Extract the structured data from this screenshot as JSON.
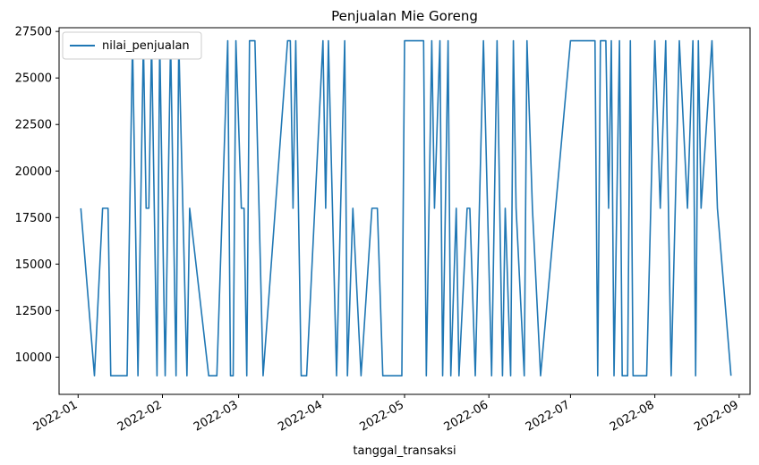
{
  "chart_data": {
    "type": "line",
    "title": "Penjualan Mie Goreng",
    "xlabel": "tanggal_transaksi",
    "ylabel": "",
    "xlim": [
      "2021-12-25",
      "2022-09-05"
    ],
    "ylim": [
      8000,
      27700
    ],
    "x_ticks": [
      "2022-01-01",
      "2022-02-01",
      "2022-03-01",
      "2022-04-01",
      "2022-05-01",
      "2022-06-01",
      "2022-07-01",
      "2022-08-01",
      "2022-09-01"
    ],
    "x_tick_labels": [
      "2022-01",
      "2022-02",
      "2022-03",
      "2022-04",
      "2022-05",
      "2022-06",
      "2022-07",
      "2022-08",
      "2022-09"
    ],
    "y_ticks": [
      10000,
      12500,
      15000,
      17500,
      20000,
      22500,
      25000,
      27500
    ],
    "y_tick_labels": [
      "10000",
      "12500",
      "15000",
      "17500",
      "20000",
      "22500",
      "25000",
      "27500"
    ],
    "legend": {
      "position": "top-left",
      "entries": [
        "nilai_penjualan"
      ]
    },
    "grid": false,
    "series": [
      {
        "name": "nilai_penjualan",
        "color": "#1f77b4",
        "x": [
          "2022-01-02",
          "2022-01-07",
          "2022-01-10",
          "2022-01-12",
          "2022-01-13",
          "2022-01-19",
          "2022-01-21",
          "2022-01-23",
          "2022-01-25",
          "2022-01-26",
          "2022-01-27",
          "2022-01-28",
          "2022-01-30",
          "2022-01-31",
          "2022-02-02",
          "2022-02-04",
          "2022-02-06",
          "2022-02-07",
          "2022-02-10",
          "2022-02-11",
          "2022-02-18",
          "2022-02-21",
          "2022-02-25",
          "2022-02-26",
          "2022-02-27",
          "2022-02-28",
          "2022-03-02",
          "2022-03-03",
          "2022-03-04",
          "2022-03-05",
          "2022-03-07",
          "2022-03-10",
          "2022-03-19",
          "2022-03-20",
          "2022-03-21",
          "2022-03-22",
          "2022-03-24",
          "2022-03-26",
          "2022-04-01",
          "2022-04-02",
          "2022-04-03",
          "2022-04-06",
          "2022-04-09",
          "2022-04-10",
          "2022-04-12",
          "2022-04-15",
          "2022-04-19",
          "2022-04-21",
          "2022-04-23",
          "2022-04-26",
          "2022-04-30",
          "2022-05-01",
          "2022-05-02",
          "2022-05-04",
          "2022-05-08",
          "2022-05-09",
          "2022-05-11",
          "2022-05-12",
          "2022-05-14",
          "2022-05-15",
          "2022-05-17",
          "2022-05-18",
          "2022-05-20",
          "2022-05-21",
          "2022-05-24",
          "2022-05-25",
          "2022-05-27",
          "2022-05-30",
          "2022-06-02",
          "2022-06-04",
          "2022-06-05",
          "2022-06-06",
          "2022-06-07",
          "2022-06-09",
          "2022-06-10",
          "2022-06-11",
          "2022-06-14",
          "2022-06-15",
          "2022-06-17",
          "2022-06-20",
          "2022-07-01",
          "2022-07-10",
          "2022-07-11",
          "2022-07-12",
          "2022-07-13",
          "2022-07-14",
          "2022-07-15",
          "2022-07-16",
          "2022-07-17",
          "2022-07-19",
          "2022-07-20",
          "2022-07-22",
          "2022-07-23",
          "2022-07-24",
          "2022-07-25",
          "2022-07-29",
          "2022-08-01",
          "2022-08-03",
          "2022-08-05",
          "2022-08-07",
          "2022-08-10",
          "2022-08-13",
          "2022-08-15",
          "2022-08-16",
          "2022-08-17",
          "2022-08-18",
          "2022-08-22",
          "2022-08-24",
          "2022-08-29"
        ],
        "values": [
          18000,
          9000,
          18000,
          18000,
          9000,
          9000,
          27000,
          9000,
          27000,
          18000,
          18000,
          27000,
          9000,
          27000,
          9000,
          27000,
          9000,
          27000,
          9000,
          18000,
          9000,
          9000,
          27000,
          9000,
          9000,
          27000,
          18000,
          18000,
          9000,
          27000,
          27000,
          9000,
          27000,
          27000,
          18000,
          27000,
          9000,
          9000,
          27000,
          18000,
          27000,
          9000,
          27000,
          9000,
          18000,
          9000,
          18000,
          18000,
          9000,
          9000,
          9000,
          27000,
          27000,
          27000,
          27000,
          9000,
          27000,
          18000,
          27000,
          9000,
          27000,
          9000,
          18000,
          9000,
          18000,
          18000,
          9000,
          27000,
          9000,
          27000,
          18000,
          9000,
          18000,
          9000,
          27000,
          18000,
          9000,
          27000,
          18000,
          9000,
          27000,
          27000,
          9000,
          27000,
          27000,
          27000,
          18000,
          27000,
          9000,
          27000,
          9000,
          9000,
          27000,
          9000,
          9000,
          9000,
          27000,
          18000,
          27000,
          9000,
          27000,
          18000,
          27000,
          9000,
          27000,
          18000,
          27000,
          18000,
          9000
        ]
      }
    ]
  }
}
